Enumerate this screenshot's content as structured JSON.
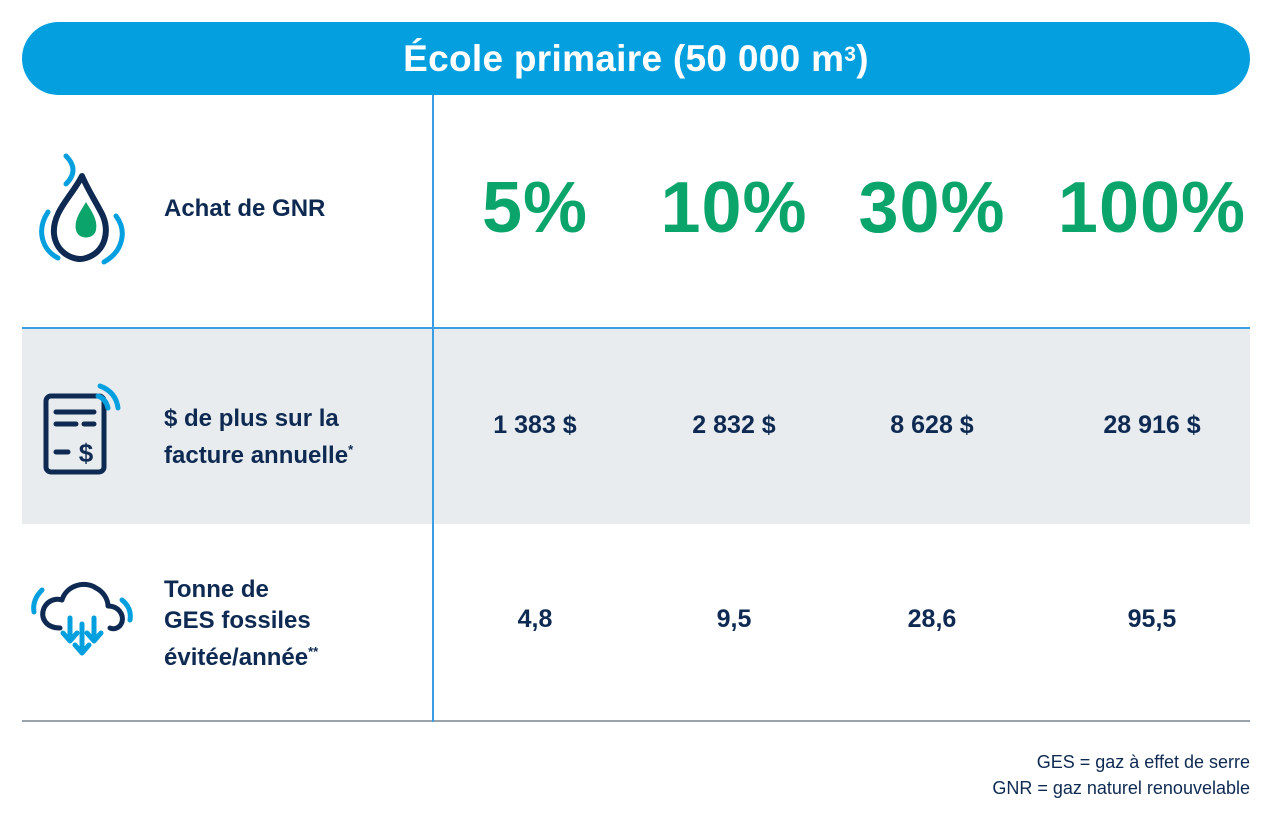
{
  "title": {
    "text": "École primaire (50 000 m",
    "sup": "3",
    "close": ")"
  },
  "rows": {
    "gnr": {
      "icon": "flame-drop-icon",
      "label": "Achat de GNR",
      "values": [
        "5%",
        "10%",
        "30%",
        "100%"
      ]
    },
    "bill": {
      "icon": "invoice-dollar-icon",
      "label_line1": "$ de plus sur la",
      "label_line2": "facture annuelle",
      "label_mark": "*",
      "values": [
        "1 383 $",
        "2 832 $",
        "8 628 $",
        "28 916 $"
      ]
    },
    "ghg": {
      "icon": "cloud-down-arrows-icon",
      "label_line1": "Tonne de",
      "label_line2": "GES fossiles",
      "label_line3": "évitée/année",
      "label_mark": "**",
      "values": [
        "4,8",
        "9,5",
        "28,6",
        "95,5"
      ]
    }
  },
  "legend": {
    "line1": "GES = gaz à effet de serre",
    "line2": "GNR = gaz naturel renouvelable"
  },
  "colors": {
    "title_bg": "#049fdf",
    "percent_green": "#0ba46a",
    "navy_text": "#0e2a52",
    "grey_row": "#e8ecef",
    "divider_blue": "#3a9ee4"
  }
}
